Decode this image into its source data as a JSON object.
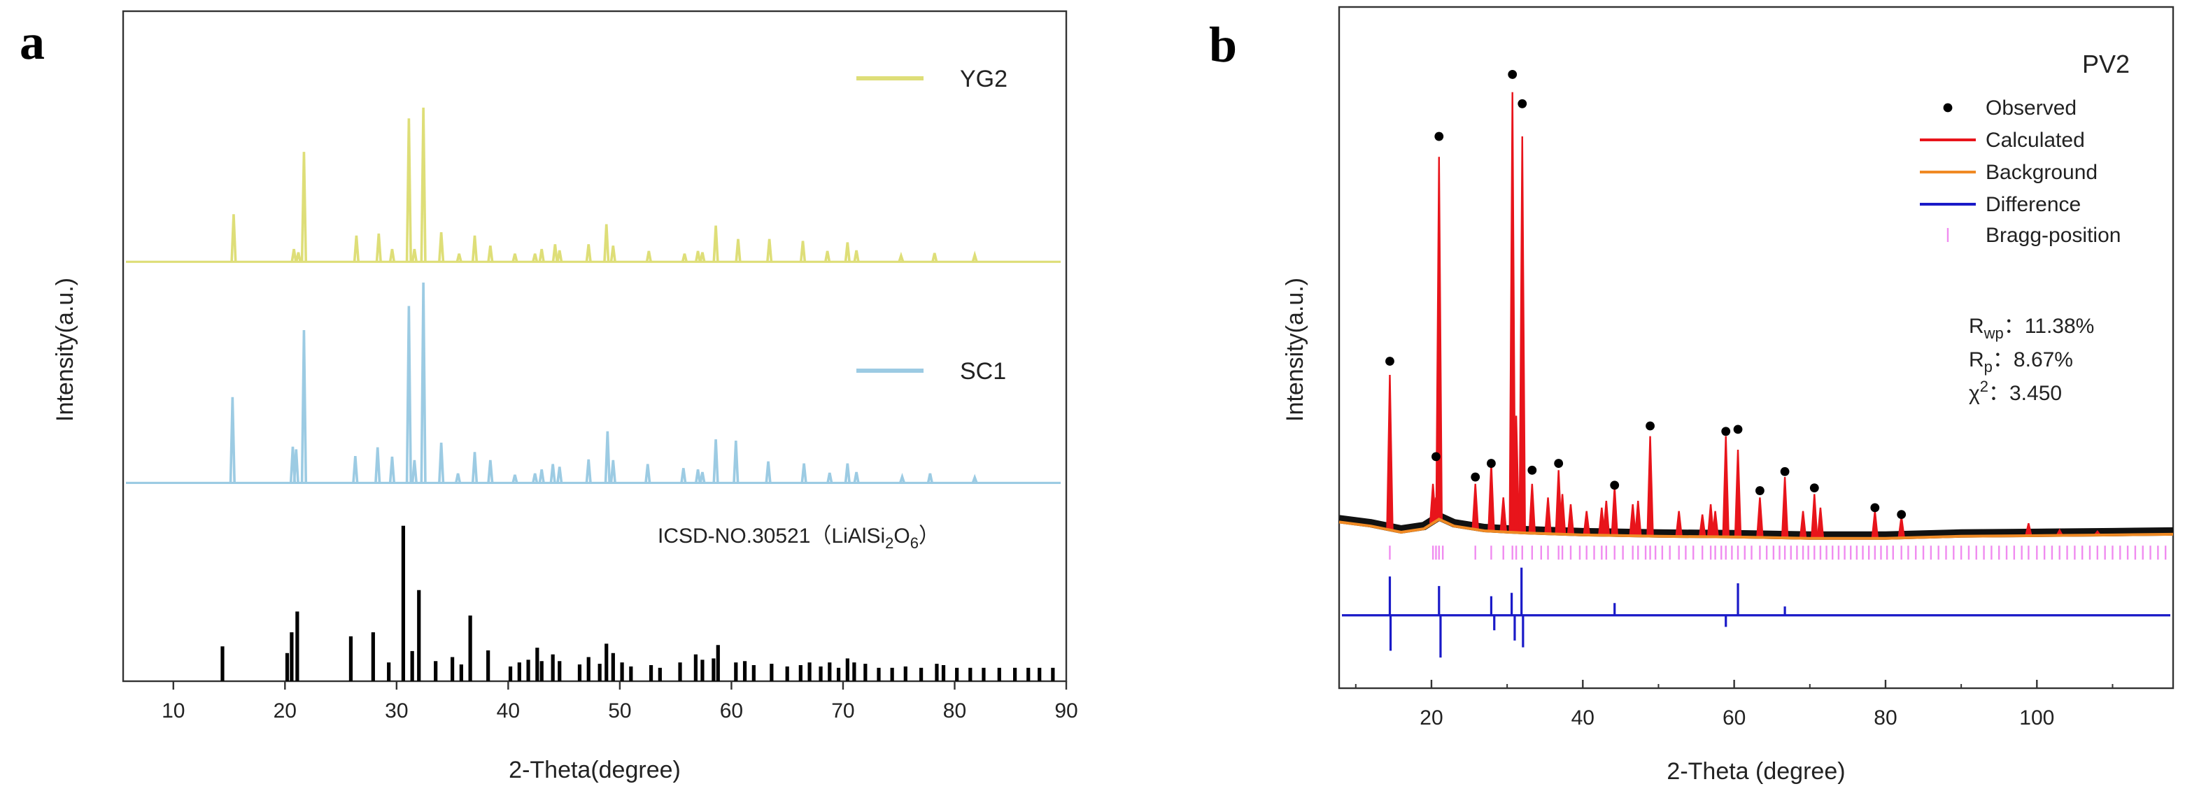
{
  "chart_data": [
    {
      "type": "line",
      "label": "a",
      "xlabel": "2-Theta(degree)",
      "ylabel": "Intensity(a.u.)",
      "xlim": [
        5.5,
        90
      ],
      "ylim": [
        0,
        100
      ],
      "xticks": [
        10,
        20,
        30,
        40,
        50,
        60,
        70,
        80,
        90
      ],
      "annotation": [
        "ICSD-NO.30521（LiAlSi",
        "2",
        "O",
        "6",
        "）"
      ],
      "series": [
        {
          "name": "YG2",
          "color": "#dede78",
          "style": "profile",
          "baseline": 62.6,
          "x": [
            15.4,
            20.8,
            21.2,
            21.7,
            26.4,
            28.4,
            29.6,
            31.1,
            31.6,
            32.4,
            34.0,
            35.6,
            37.0,
            38.4,
            40.6,
            42.4,
            43.0,
            44.2,
            44.6,
            47.2,
            48.8,
            49.4,
            52.6,
            55.8,
            57.0,
            57.4,
            58.6,
            60.6,
            63.4,
            66.4,
            68.6,
            70.4,
            71.2,
            75.2,
            78.2,
            81.8
          ],
          "values": [
            69.7,
            64.5,
            64,
            79,
            66.5,
            66.8,
            64.5,
            84,
            64.5,
            85.6,
            67,
            63.8,
            66.5,
            65,
            63.8,
            63.8,
            64.5,
            65.2,
            64.3,
            65.2,
            68.2,
            65,
            64.2,
            63.8,
            64.2,
            64,
            68,
            66,
            66,
            65.7,
            64.2,
            65.5,
            64.3,
            63.5,
            63.9,
            63.6
          ]
        },
        {
          "name": "SC1",
          "color": "#9ccbe3",
          "style": "profile",
          "baseline": 29.6,
          "x": [
            15.3,
            20.7,
            21.0,
            21.7,
            26.3,
            28.3,
            29.6,
            31.1,
            31.6,
            32.4,
            34.0,
            35.5,
            37.0,
            38.4,
            40.6,
            42.4,
            43.0,
            44.0,
            44.6,
            47.2,
            48.9,
            49.4,
            52.5,
            55.7,
            57.0,
            57.4,
            58.6,
            60.4,
            63.3,
            66.5,
            68.8,
            70.4,
            71.2,
            75.3,
            77.8,
            81.8
          ],
          "values": [
            42.4,
            35,
            34.6,
            52.4,
            33.6,
            34.9,
            33.5,
            56,
            33,
            59.5,
            35.6,
            31,
            34.2,
            33,
            30.8,
            31,
            31.6,
            32.4,
            32,
            33.1,
            37.3,
            33,
            32.4,
            31.8,
            31.6,
            31.2,
            36.1,
            35.9,
            32.8,
            32.5,
            31.1,
            32.5,
            31.2,
            30.5,
            31,
            30.4
          ]
        },
        {
          "color": "#000000",
          "style": "stick",
          "baseline": 0,
          "x": [
            14.4,
            20.2,
            20.6,
            21.1,
            25.9,
            27.9,
            29.3,
            30.6,
            31.4,
            32.0,
            33.5,
            35.0,
            35.8,
            36.6,
            38.2,
            40.2,
            41.0,
            41.8,
            42.6,
            43.0,
            44.0,
            44.6,
            46.4,
            47.2,
            48.2,
            48.8,
            49.4,
            50.2,
            51.0,
            52.8,
            53.6,
            55.4,
            56.8,
            57.4,
            58.4,
            58.8,
            60.4,
            61.2,
            62.0,
            63.6,
            65.0,
            66.2,
            67.0,
            68.0,
            68.8,
            69.6,
            70.4,
            71.0,
            72.0,
            73.2,
            74.4,
            75.6,
            77.0,
            78.4,
            79.0,
            80.2,
            81.4,
            82.6,
            84.0,
            85.4,
            86.6,
            87.6,
            88.8
          ],
          "values": [
            5.2,
            4.2,
            7.3,
            10.4,
            6.7,
            7.3,
            2.8,
            23.2,
            4.5,
            13.6,
            3,
            3.6,
            2.5,
            9.8,
            4.6,
            2.2,
            2.8,
            3.2,
            5,
            3,
            4,
            3,
            2.5,
            3.6,
            2.6,
            5.6,
            4.2,
            2.8,
            2.2,
            2.4,
            2,
            2.8,
            4,
            3.2,
            3.4,
            5.4,
            2.8,
            3,
            2.4,
            2.6,
            2.2,
            2.4,
            2.8,
            2.2,
            2.8,
            2,
            3.4,
            2.8,
            2.6,
            2,
            2,
            2.2,
            2,
            2.6,
            2.4,
            2,
            2,
            2,
            2,
            2,
            2,
            2,
            2
          ]
        }
      ]
    },
    {
      "type": "rietveld",
      "label": "b",
      "title": "PV2",
      "xlabel": "2-Theta (degree)",
      "ylabel": "Intensity(a.u.)",
      "xlim": [
        7.8,
        118
      ],
      "ylim": [
        0,
        100
      ],
      "xticks": [
        20,
        40,
        60,
        80,
        100
      ],
      "xminorticks": [
        10,
        30,
        50,
        70,
        90,
        110
      ],
      "series": [
        {
          "name": "Observed",
          "color": "#000000",
          "x": [
            14.5,
            20.6,
            21.0,
            25.8,
            27.9,
            30.7,
            32.0,
            33.3,
            36.8,
            44.2,
            48.9,
            58.9,
            60.5,
            63.4,
            66.7,
            70.6,
            78.6,
            82.1
          ],
          "values": [
            48,
            34,
            81,
            31,
            33,
            90.1,
            85.8,
            32,
            33,
            29.8,
            38.5,
            37.7,
            38,
            29,
            31.8,
            29.4,
            26.5,
            25.5
          ]
        },
        {
          "name": "Calculated",
          "color": "#e8141b",
          "x": [
            14.5,
            20.2,
            20.6,
            21.0,
            25.8,
            27.9,
            29.5,
            30.7,
            31.2,
            32.0,
            33.3,
            35.4,
            36.8,
            37.3,
            38.4,
            40.5,
            42.5,
            43.1,
            44.2,
            46.6,
            47.3,
            48.9,
            52.7,
            55.8,
            56.9,
            57.5,
            58.9,
            60.5,
            63.4,
            66.7,
            69.1,
            70.6,
            71.4,
            78.6,
            82.1,
            98.9,
            103,
            108
          ],
          "values": [
            46,
            30,
            28,
            78,
            30,
            33,
            28,
            87.5,
            40,
            81,
            30,
            28,
            32,
            28.5,
            27,
            26,
            26.5,
            27.5,
            29.5,
            27,
            27.5,
            37,
            26,
            25.5,
            27,
            26,
            37,
            35,
            28,
            31,
            26,
            28.5,
            26.5,
            26,
            25.2,
            24.2,
            23.2,
            23
          ]
        },
        {
          "name": "Background",
          "color": "#f08a24",
          "x": [
            7.8,
            12,
            16,
            19,
            21,
            23,
            27,
            32,
            40,
            50,
            60,
            70,
            80,
            90,
            100,
            110,
            118
          ],
          "values": [
            24.4,
            23.8,
            22.9,
            23.4,
            24.8,
            23.8,
            23.1,
            22.8,
            22.5,
            22.3,
            22.2,
            22,
            22,
            22.3,
            22.4,
            22.5,
            22.6
          ]
        },
        {
          "name": "Difference",
          "color": "#1a1ac8",
          "baseline": 10.7,
          "x": [
            14.5,
            14.6,
            21.0,
            21.2,
            27.9,
            28.3,
            30.6,
            31.0,
            31.9,
            32.1,
            44.2,
            58.9,
            60.5,
            66.7
          ],
          "values": [
            16.4,
            5.5,
            15,
            4.5,
            13.5,
            8.5,
            14,
            7,
            17.7,
            6,
            12.5,
            9,
            15.4,
            12
          ]
        },
        {
          "name": "Bragg-position",
          "color": "#f08cf0",
          "level": 19.9,
          "x": [
            14.5,
            20.2,
            20.6,
            21.0,
            21.5,
            25.8,
            27.9,
            29.5,
            30.7,
            31.2,
            32.0,
            33.3,
            34.5,
            35.4,
            36.8,
            37.3,
            38.4,
            39.6,
            40.5,
            41.5,
            42.5,
            43.1,
            44.2,
            45.3,
            46.6,
            47.3,
            48.3,
            48.9,
            49.6,
            50.5,
            51.5,
            52.7,
            53.6,
            54.6,
            55.8,
            56.9,
            57.5,
            58.3,
            58.9,
            59.7,
            60.5,
            61.4,
            62.3,
            63.4,
            64.3,
            65.2,
            66.0,
            66.7,
            67.5,
            68.3,
            69.1,
            69.8,
            70.6,
            71.4,
            72.2,
            73.0,
            73.8,
            74.6,
            75.4,
            76.2,
            77.0,
            77.8,
            78.6,
            79.4,
            80.2,
            81.0,
            82.1,
            83.0,
            84.0,
            85.0,
            86.0,
            87.0,
            88.0,
            89.0,
            90.0,
            91.0,
            92.0,
            93.0,
            94.0,
            95.0,
            96.0,
            97.0,
            98.0,
            98.9,
            100,
            101,
            102,
            103,
            104,
            105,
            106,
            107,
            108,
            109,
            110,
            111,
            112,
            113,
            114,
            115,
            116,
            117
          ]
        }
      ],
      "stats": [
        {
          "symbol": "R",
          "sub": "wp",
          "value": "：11.38%"
        },
        {
          "symbol": "R",
          "sub": "p",
          "value": "：8.67%"
        },
        {
          "symbol": "χ",
          "sup": "2",
          "value": "：3.450"
        }
      ]
    }
  ]
}
